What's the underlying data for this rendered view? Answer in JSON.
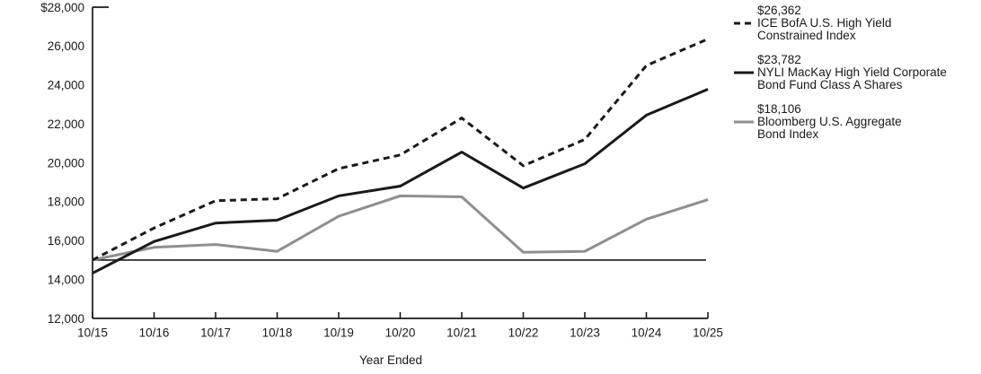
{
  "chart_data": {
    "type": "line",
    "title": "",
    "xlabel": "Year Ended",
    "ylabel": "",
    "ylim": [
      12000,
      28000
    ],
    "ytick_step": 2000,
    "ytick_labels": [
      "$28,000",
      "26,000",
      "24,000",
      "22,000",
      "20,000",
      "18,000",
      "16,000",
      "14,000",
      "12,000"
    ],
    "categories": [
      "10/15",
      "10/16",
      "10/17",
      "10/18",
      "10/19",
      "10/20",
      "10/21",
      "10/22",
      "10/23",
      "10/24",
      "10/25"
    ],
    "series": [
      {
        "name": "ICE BofA U.S. High Yield Constrained Index",
        "name_lines": [
          "ICE BofA U.S. High Yield",
          "Constrained Index"
        ],
        "final_value_label": "$26,362",
        "line_style": "dashed",
        "color": "#1a1a1a",
        "values": [
          15000,
          16650,
          18050,
          18150,
          19700,
          20400,
          22300,
          19850,
          21200,
          25000,
          26362
        ]
      },
      {
        "name": "NYLI MacKay High Yield Corporate Bond Fund Class A Shares",
        "name_lines": [
          "NYLI MacKay High Yield Corporate",
          "Bond Fund Class A Shares"
        ],
        "final_value_label": "$23,782",
        "line_style": "solid",
        "color": "#1a1a1a",
        "values": [
          14325,
          15950,
          16900,
          17050,
          18300,
          18800,
          20550,
          18700,
          19950,
          22450,
          23782
        ]
      },
      {
        "name": "Bloomberg U.S. Aggregate Bond Index",
        "name_lines": [
          "Bloomberg U.S. Aggregate",
          "Bond Index"
        ],
        "final_value_label": "$18,106",
        "line_style": "solid",
        "color": "#8f8f8f",
        "values": [
          15000,
          15650,
          15800,
          15450,
          17250,
          18300,
          18250,
          15400,
          15450,
          17100,
          18106
        ]
      }
    ],
    "reference_line": {
      "value": 15000,
      "color": "#1a1a1a"
    },
    "legend_position": "right",
    "grid": false
  }
}
